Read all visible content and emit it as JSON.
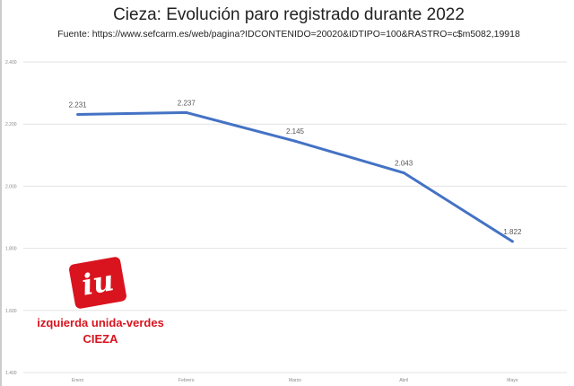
{
  "chart_data": {
    "type": "line",
    "title": "Cieza: Evolución paro registrado durante 2022",
    "subtitle": "Fuente: https://www.sefcarm.es/web/pagina?IDCONTENIDO=20020&IDTIPO=100&RASTRO=c$m5082,19918",
    "categories": [
      "Enero",
      "Febrero",
      "Marzo",
      "Abril",
      "Mayo"
    ],
    "values": [
      2231,
      2237,
      2145,
      2043,
      1822
    ],
    "data_labels": [
      "2.231",
      "2.237",
      "2.145",
      "2.043",
      "1.822"
    ],
    "ylim": [
      1400,
      2400
    ],
    "yticks": [
      2400,
      2200,
      2000,
      1800,
      1600,
      1400
    ],
    "ytick_labels": [
      "2.400",
      "2.200",
      "2.000",
      "1.800",
      "1.600",
      "1.400"
    ],
    "grid": true,
    "line_color": "#4472c4"
  },
  "logo": {
    "mark": "iu",
    "line1": "izquierda unida-verdes",
    "line2": "CIEZA"
  }
}
